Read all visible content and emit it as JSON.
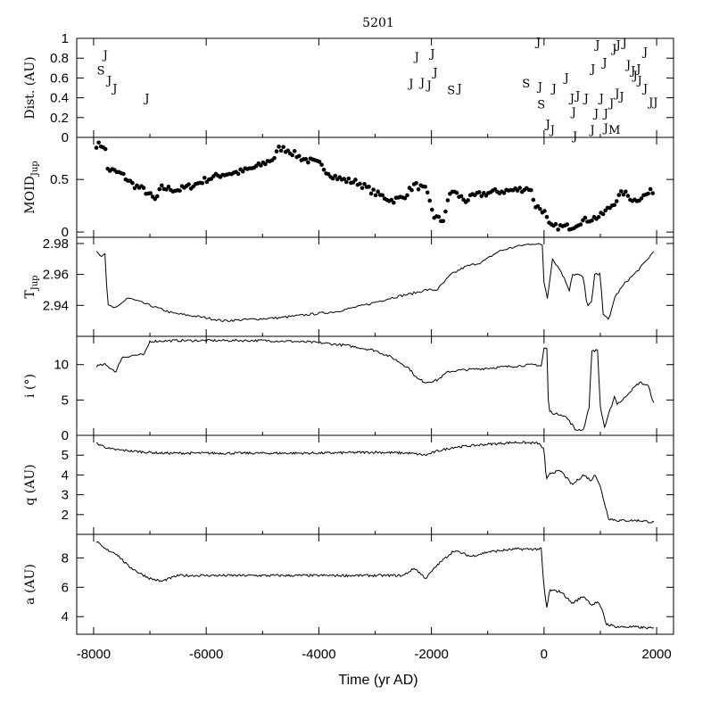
{
  "chart_data": {
    "type": "line",
    "title": "5201",
    "xlabel": "Time (yr AD)",
    "xlim": [
      -8300,
      2300
    ],
    "xticks": [
      -8000,
      -6000,
      -4000,
      -2000,
      0,
      2000
    ],
    "panels": [
      {
        "id": "dist",
        "kind": "letters",
        "ylabel": "Dist. (AU)",
        "ylim": [
          0,
          1
        ],
        "yticks": [
          0,
          0.2,
          0.4,
          0.6,
          0.8,
          1
        ],
        "ytick_labels": [
          "0",
          "0.2",
          "0.4",
          "0.6",
          "0.8",
          "1"
        ],
        "encounters": [
          {
            "x": -7790,
            "y": 0.84,
            "label": "J"
          },
          {
            "x": -7870,
            "y": 0.68,
            "label": "S"
          },
          {
            "x": -7720,
            "y": 0.58,
            "label": "J"
          },
          {
            "x": -7620,
            "y": 0.5,
            "label": "J"
          },
          {
            "x": -7050,
            "y": 0.4,
            "label": "J"
          },
          {
            "x": -2260,
            "y": 0.82,
            "label": "J"
          },
          {
            "x": -1980,
            "y": 0.85,
            "label": "J"
          },
          {
            "x": -2360,
            "y": 0.55,
            "label": "J"
          },
          {
            "x": -2160,
            "y": 0.56,
            "label": "J"
          },
          {
            "x": -2040,
            "y": 0.53,
            "label": "J"
          },
          {
            "x": -1930,
            "y": 0.66,
            "label": "J"
          },
          {
            "x": -1650,
            "y": 0.48,
            "label": "S"
          },
          {
            "x": -1500,
            "y": 0.5,
            "label": "J"
          },
          {
            "x": -320,
            "y": 0.55,
            "label": "S"
          },
          {
            "x": -100,
            "y": 0.97,
            "label": "J"
          },
          {
            "x": -70,
            "y": 0.52,
            "label": "J"
          },
          {
            "x": 180,
            "y": 0.5,
            "label": "J"
          },
          {
            "x": -50,
            "y": 0.34,
            "label": "S"
          },
          {
            "x": 70,
            "y": 0.14,
            "label": "J"
          },
          {
            "x": 150,
            "y": 0.08,
            "label": "J"
          },
          {
            "x": 400,
            "y": 0.61,
            "label": "J"
          },
          {
            "x": 500,
            "y": 0.4,
            "label": "J"
          },
          {
            "x": 600,
            "y": 0.43,
            "label": "J"
          },
          {
            "x": 530,
            "y": 0.26,
            "label": "J"
          },
          {
            "x": 550,
            "y": 0.02,
            "label": "J"
          },
          {
            "x": 750,
            "y": 0.4,
            "label": "J"
          },
          {
            "x": 870,
            "y": 0.7,
            "label": "J"
          },
          {
            "x": 950,
            "y": 0.94,
            "label": "J"
          },
          {
            "x": 930,
            "y": 0.25,
            "label": "J"
          },
          {
            "x": 860,
            "y": 0.08,
            "label": "J"
          },
          {
            "x": 1080,
            "y": 0.76,
            "label": "J"
          },
          {
            "x": 1020,
            "y": 0.4,
            "label": "J"
          },
          {
            "x": 1100,
            "y": 0.25,
            "label": "J"
          },
          {
            "x": 1100,
            "y": 0.1,
            "label": "J"
          },
          {
            "x": 1250,
            "y": 0.08,
            "label": "M"
          },
          {
            "x": 1250,
            "y": 0.9,
            "label": "J"
          },
          {
            "x": 1320,
            "y": 0.94,
            "label": "J"
          },
          {
            "x": 1430,
            "y": 0.96,
            "label": "J"
          },
          {
            "x": 1500,
            "y": 0.74,
            "label": "J"
          },
          {
            "x": 1580,
            "y": 0.68,
            "label": "J"
          },
          {
            "x": 1620,
            "y": 0.63,
            "label": "J"
          },
          {
            "x": 1680,
            "y": 0.7,
            "label": "J"
          },
          {
            "x": 1700,
            "y": 0.58,
            "label": "J"
          },
          {
            "x": 1800,
            "y": 0.87,
            "label": "J"
          },
          {
            "x": 1800,
            "y": 0.5,
            "label": "J"
          },
          {
            "x": 1300,
            "y": 0.45,
            "label": "J"
          },
          {
            "x": 1380,
            "y": 0.42,
            "label": "J"
          },
          {
            "x": 1900,
            "y": 0.36,
            "label": "J"
          },
          {
            "x": 1980,
            "y": 0.36,
            "label": "J"
          },
          {
            "x": 1200,
            "y": 0.35,
            "label": "J"
          }
        ]
      },
      {
        "id": "moid",
        "kind": "scatter",
        "ylabel": "MOID",
        "ylabel_sub": "Jup",
        "ylim": [
          -0.05,
          0.9
        ],
        "yticks": [
          0,
          0.5
        ],
        "ytick_labels": [
          "0",
          "0.5"
        ],
        "x_range": [
          -7950,
          1950
        ],
        "x_step": 40,
        "knots": [
          [
            -7950,
            0.83
          ],
          [
            -7800,
            0.82
          ],
          [
            -7750,
            0.6
          ],
          [
            -7500,
            0.55
          ],
          [
            -7300,
            0.45
          ],
          [
            -7100,
            0.4
          ],
          [
            -6900,
            0.3
          ],
          [
            -6800,
            0.42
          ],
          [
            -6500,
            0.4
          ],
          [
            -6200,
            0.45
          ],
          [
            -6000,
            0.5
          ],
          [
            -5700,
            0.55
          ],
          [
            -5400,
            0.57
          ],
          [
            -5100,
            0.62
          ],
          [
            -4800,
            0.7
          ],
          [
            -4700,
            0.8
          ],
          [
            -4550,
            0.78
          ],
          [
            -4300,
            0.7
          ],
          [
            -4000,
            0.65
          ],
          [
            -3800,
            0.55
          ],
          [
            -3600,
            0.5
          ],
          [
            -3300,
            0.47
          ],
          [
            -3000,
            0.37
          ],
          [
            -2700,
            0.3
          ],
          [
            -2500,
            0.33
          ],
          [
            -2300,
            0.45
          ],
          [
            -2100,
            0.4
          ],
          [
            -1950,
            0.15
          ],
          [
            -1800,
            0.1
          ],
          [
            -1650,
            0.4
          ],
          [
            -1400,
            0.3
          ],
          [
            -1200,
            0.35
          ],
          [
            -900,
            0.38
          ],
          [
            -500,
            0.4
          ],
          [
            -250,
            0.42
          ],
          [
            -150,
            0.25
          ],
          [
            0,
            0.2
          ],
          [
            100,
            0.05
          ],
          [
            300,
            0.05
          ],
          [
            500,
            0.05
          ],
          [
            650,
            0.1
          ],
          [
            800,
            0.12
          ],
          [
            1000,
            0.15
          ],
          [
            1200,
            0.25
          ],
          [
            1400,
            0.38
          ],
          [
            1600,
            0.3
          ],
          [
            1800,
            0.35
          ],
          [
            1950,
            0.4
          ]
        ]
      },
      {
        "id": "tjup",
        "kind": "line",
        "ylabel": "T",
        "ylabel_sub": "Jup",
        "ylim": [
          2.92,
          2.984
        ],
        "yticks": [
          2.94,
          2.96,
          2.98
        ],
        "ytick_labels": [
          "2.94",
          "2.96",
          "2.98"
        ],
        "x_range": [
          -7950,
          1950
        ],
        "x_step": 30,
        "knots": [
          [
            -7950,
            2.975
          ],
          [
            -7850,
            2.972
          ],
          [
            -7800,
            2.974
          ],
          [
            -7750,
            2.94
          ],
          [
            -7600,
            2.938
          ],
          [
            -7400,
            2.945
          ],
          [
            -7000,
            2.94
          ],
          [
            -6600,
            2.935
          ],
          [
            -6000,
            2.932
          ],
          [
            -5700,
            2.93
          ],
          [
            -5200,
            2.931
          ],
          [
            -4700,
            2.932
          ],
          [
            -4200,
            2.934
          ],
          [
            -3700,
            2.936
          ],
          [
            -3200,
            2.94
          ],
          [
            -2700,
            2.945
          ],
          [
            -2300,
            2.948
          ],
          [
            -2100,
            2.95
          ],
          [
            -1900,
            2.95
          ],
          [
            -1650,
            2.96
          ],
          [
            -1400,
            2.965
          ],
          [
            -1100,
            2.968
          ],
          [
            -800,
            2.975
          ],
          [
            -500,
            2.978
          ],
          [
            -200,
            2.98
          ],
          [
            -20,
            2.979
          ],
          [
            0,
            2.955
          ],
          [
            60,
            2.945
          ],
          [
            150,
            2.97
          ],
          [
            300,
            2.962
          ],
          [
            450,
            2.95
          ],
          [
            500,
            2.96
          ],
          [
            600,
            2.96
          ],
          [
            700,
            2.958
          ],
          [
            760,
            2.94
          ],
          [
            850,
            2.942
          ],
          [
            900,
            2.96
          ],
          [
            1000,
            2.96
          ],
          [
            1050,
            2.935
          ],
          [
            1150,
            2.93
          ],
          [
            1250,
            2.945
          ],
          [
            1450,
            2.955
          ],
          [
            1600,
            2.96
          ],
          [
            1800,
            2.968
          ],
          [
            1950,
            2.975
          ]
        ]
      },
      {
        "id": "incl",
        "kind": "line",
        "ylabel": "i (°)",
        "ylim": [
          0,
          14
        ],
        "yticks": [
          0,
          5,
          10
        ],
        "ytick_labels": [
          "0",
          "5",
          "10"
        ],
        "x_range": [
          -7950,
          1950
        ],
        "x_step": 25,
        "knots": [
          [
            -7950,
            9.8
          ],
          [
            -7800,
            10.0
          ],
          [
            -7600,
            9.0
          ],
          [
            -7500,
            11.0
          ],
          [
            -7300,
            11.3
          ],
          [
            -7100,
            11.4
          ],
          [
            -7000,
            13.3
          ],
          [
            -6500,
            13.4
          ],
          [
            -6000,
            13.4
          ],
          [
            -5000,
            13.4
          ],
          [
            -4500,
            13.3
          ],
          [
            -4000,
            13.1
          ],
          [
            -3500,
            12.7
          ],
          [
            -3000,
            12.0
          ],
          [
            -2700,
            11.0
          ],
          [
            -2400,
            9.5
          ],
          [
            -2250,
            8.0
          ],
          [
            -2100,
            7.5
          ],
          [
            -1900,
            7.8
          ],
          [
            -1700,
            9.0
          ],
          [
            -1500,
            9.2
          ],
          [
            -1000,
            9.5
          ],
          [
            -500,
            9.8
          ],
          [
            -150,
            10.0
          ],
          [
            -50,
            9.8
          ],
          [
            0,
            12.3
          ],
          [
            50,
            12.3
          ],
          [
            80,
            3.5
          ],
          [
            200,
            3.0
          ],
          [
            300,
            3.0
          ],
          [
            400,
            2.5
          ],
          [
            500,
            1.5
          ],
          [
            550,
            0.8
          ],
          [
            700,
            0.8
          ],
          [
            800,
            4.0
          ],
          [
            850,
            12.0
          ],
          [
            950,
            12.0
          ],
          [
            1000,
            4.0
          ],
          [
            1080,
            1.0
          ],
          [
            1150,
            3.0
          ],
          [
            1250,
            5.5
          ],
          [
            1300,
            4.5
          ],
          [
            1400,
            5.0
          ],
          [
            1500,
            6.0
          ],
          [
            1700,
            7.5
          ],
          [
            1850,
            7.0
          ],
          [
            1950,
            4.5
          ]
        ]
      },
      {
        "id": "q",
        "kind": "line",
        "ylabel": "q (AU)",
        "ylim": [
          1.0,
          6.0
        ],
        "yticks": [
          2,
          3,
          4,
          5
        ],
        "ytick_labels": [
          "2",
          "3",
          "4",
          "5"
        ],
        "x_range": [
          -7950,
          1950
        ],
        "x_step": 20,
        "knots": [
          [
            -7950,
            5.6
          ],
          [
            -7700,
            5.3
          ],
          [
            -7300,
            5.2
          ],
          [
            -6800,
            5.1
          ],
          [
            -6000,
            5.1
          ],
          [
            -5000,
            5.1
          ],
          [
            -4000,
            5.1
          ],
          [
            -3000,
            5.15
          ],
          [
            -2400,
            5.1
          ],
          [
            -2100,
            5.0
          ],
          [
            -1900,
            5.2
          ],
          [
            -1600,
            5.4
          ],
          [
            -1000,
            5.55
          ],
          [
            -500,
            5.65
          ],
          [
            -100,
            5.6
          ],
          [
            0,
            5.3
          ],
          [
            40,
            3.7
          ],
          [
            100,
            4.1
          ],
          [
            300,
            4.2
          ],
          [
            500,
            3.5
          ],
          [
            700,
            4.0
          ],
          [
            850,
            3.7
          ],
          [
            900,
            4.1
          ],
          [
            1000,
            3.4
          ],
          [
            1100,
            2.3
          ],
          [
            1150,
            1.8
          ],
          [
            1300,
            1.7
          ],
          [
            1500,
            1.7
          ],
          [
            1700,
            1.7
          ],
          [
            1950,
            1.6
          ]
        ]
      },
      {
        "id": "a",
        "kind": "line",
        "ylabel": "a (AU)",
        "ylim": [
          2.8,
          9.6
        ],
        "yticks": [
          4,
          6,
          8
        ],
        "ytick_labels": [
          "4",
          "6",
          "8"
        ],
        "x_range": [
          -7950,
          1950
        ],
        "x_step": 20,
        "knots": [
          [
            -7950,
            9.1
          ],
          [
            -7800,
            8.6
          ],
          [
            -7600,
            8.3
          ],
          [
            -7400,
            7.5
          ],
          [
            -7200,
            7.0
          ],
          [
            -7000,
            6.6
          ],
          [
            -6800,
            6.4
          ],
          [
            -6500,
            6.8
          ],
          [
            -6000,
            6.8
          ],
          [
            -5000,
            6.8
          ],
          [
            -4000,
            6.8
          ],
          [
            -3000,
            6.8
          ],
          [
            -2500,
            6.8
          ],
          [
            -2300,
            7.3
          ],
          [
            -2100,
            6.6
          ],
          [
            -1900,
            7.5
          ],
          [
            -1600,
            8.5
          ],
          [
            -1300,
            8.1
          ],
          [
            -1000,
            8.4
          ],
          [
            -500,
            8.6
          ],
          [
            -50,
            8.6
          ],
          [
            0,
            5.9
          ],
          [
            50,
            4.6
          ],
          [
            100,
            5.8
          ],
          [
            300,
            5.7
          ],
          [
            500,
            4.9
          ],
          [
            700,
            5.4
          ],
          [
            850,
            4.8
          ],
          [
            950,
            5.0
          ],
          [
            1050,
            4.3
          ],
          [
            1100,
            3.5
          ],
          [
            1300,
            3.3
          ],
          [
            1600,
            3.3
          ],
          [
            1950,
            3.2
          ]
        ]
      }
    ]
  }
}
